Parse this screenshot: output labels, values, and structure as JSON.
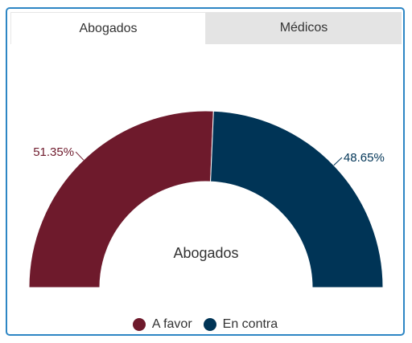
{
  "tabs": [
    {
      "label": "Abogados",
      "active": true
    },
    {
      "label": "Médicos",
      "active": false
    }
  ],
  "colors": {
    "favor": "#6e1a2c",
    "contra": "#003456",
    "label_favor": "#6e1a2c",
    "label_contra": "#003456"
  },
  "chart_data": {
    "type": "pie",
    "variant": "semi-donut",
    "center_label": "Abogados",
    "series": [
      {
        "name": "A favor",
        "value": 51.35,
        "label": "51.35%"
      },
      {
        "name": "En contra",
        "value": 48.65,
        "label": "48.65%"
      }
    ],
    "legend_placement": "bottom"
  }
}
